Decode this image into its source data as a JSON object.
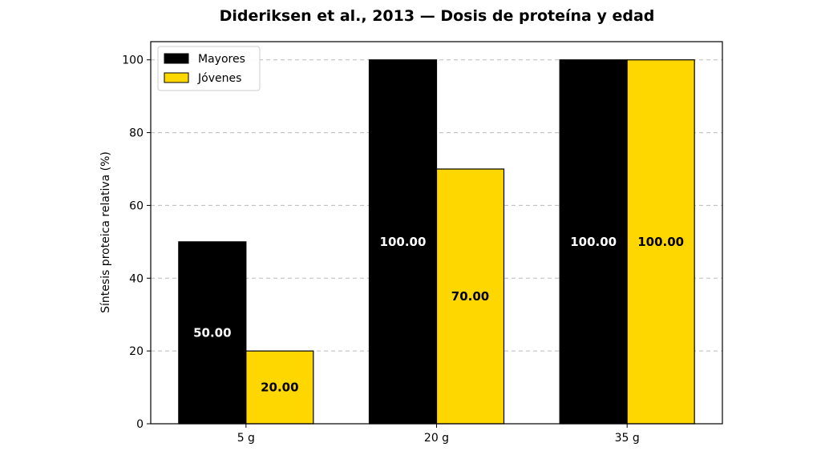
{
  "chart_data": {
    "type": "bar",
    "title": "Dideriksen et al., 2013 — Dosis de proteína y edad",
    "xlabel": "",
    "ylabel": "Síntesis proteica relativa (%)",
    "categories": [
      "5 g",
      "20 g",
      "35 g"
    ],
    "series": [
      {
        "name": "Mayores",
        "values": [
          50,
          100,
          100
        ],
        "color": "#000000",
        "label_color": "#ffffff"
      },
      {
        "name": "Jóvenes",
        "values": [
          20,
          70,
          100
        ],
        "color": "#ffd700",
        "label_color": "#000000"
      }
    ],
    "data_labels": [
      [
        "50.00",
        "100.00",
        "100.00"
      ],
      [
        "20.00",
        "70.00",
        "100.00"
      ]
    ],
    "ylim": [
      0,
      105
    ],
    "yticks": [
      "0",
      "20",
      "40",
      "60",
      "80",
      "100"
    ],
    "grid": "y-dashed",
    "legend_position": "top-left"
  }
}
